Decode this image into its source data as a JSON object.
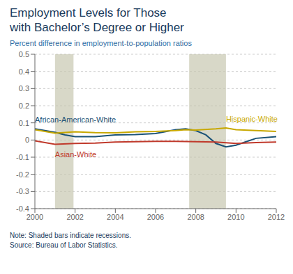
{
  "chart_data": {
    "type": "line",
    "title": "Employment Levels for Those\nwith Bachelor’s Degree or Higher",
    "subtitle": "Percent difference in employment-to-population ratios",
    "note": "Note: Shaded bars indicate recessions.\nSource: Bureau of Labor Statistics.",
    "xlim": [
      2000,
      2012
    ],
    "ylim": [
      -0.4,
      0.5
    ],
    "xticks": [
      2000,
      2002,
      2004,
      2006,
      2008,
      2010,
      2012
    ],
    "yticks": [
      -0.4,
      -0.3,
      -0.2,
      -0.1,
      0.0,
      0.1,
      0.2,
      0.3,
      0.4,
      0.5
    ],
    "grid": "y",
    "recession_bands": {
      "color": "#c8c8b0",
      "ranges": [
        [
          2001.0,
          2001.92
        ],
        [
          2007.67,
          2009.5
        ]
      ]
    },
    "series": [
      {
        "name": "African-American-White",
        "color": "#1a5276",
        "x": [
          2000,
          2000.5,
          2001,
          2001.5,
          2002,
          2003,
          2004,
          2005,
          2006,
          2007,
          2007.5,
          2008,
          2008.5,
          2009,
          2009.5,
          2010,
          2010.5,
          2011,
          2011.5,
          2012
        ],
        "values": [
          0.065,
          0.055,
          0.045,
          0.03,
          0.02,
          0.02,
          0.03,
          0.032,
          0.038,
          0.06,
          0.065,
          0.055,
          0.03,
          -0.02,
          -0.04,
          -0.03,
          -0.01,
          0.01,
          0.015,
          0.02
        ]
      },
      {
        "name": "Hispanic-White",
        "color": "#c8a800",
        "x": [
          2000,
          2001,
          2002,
          2003,
          2004,
          2005,
          2006,
          2007,
          2007.5,
          2008,
          2009,
          2009.5,
          2010,
          2011,
          2012
        ],
        "values": [
          0.06,
          0.04,
          0.048,
          0.043,
          0.042,
          0.048,
          0.05,
          0.055,
          0.06,
          0.058,
          0.065,
          0.07,
          0.06,
          0.055,
          0.05
        ]
      },
      {
        "name": "Asian-White",
        "color": "#c0392b",
        "x": [
          2000,
          2001,
          2002,
          2003,
          2004,
          2005,
          2006,
          2007,
          2008,
          2009,
          2010,
          2011,
          2012
        ],
        "values": [
          -0.005,
          -0.025,
          -0.02,
          -0.018,
          -0.012,
          -0.01,
          -0.008,
          -0.008,
          -0.01,
          -0.012,
          -0.02,
          -0.015,
          -0.012
        ]
      }
    ]
  }
}
